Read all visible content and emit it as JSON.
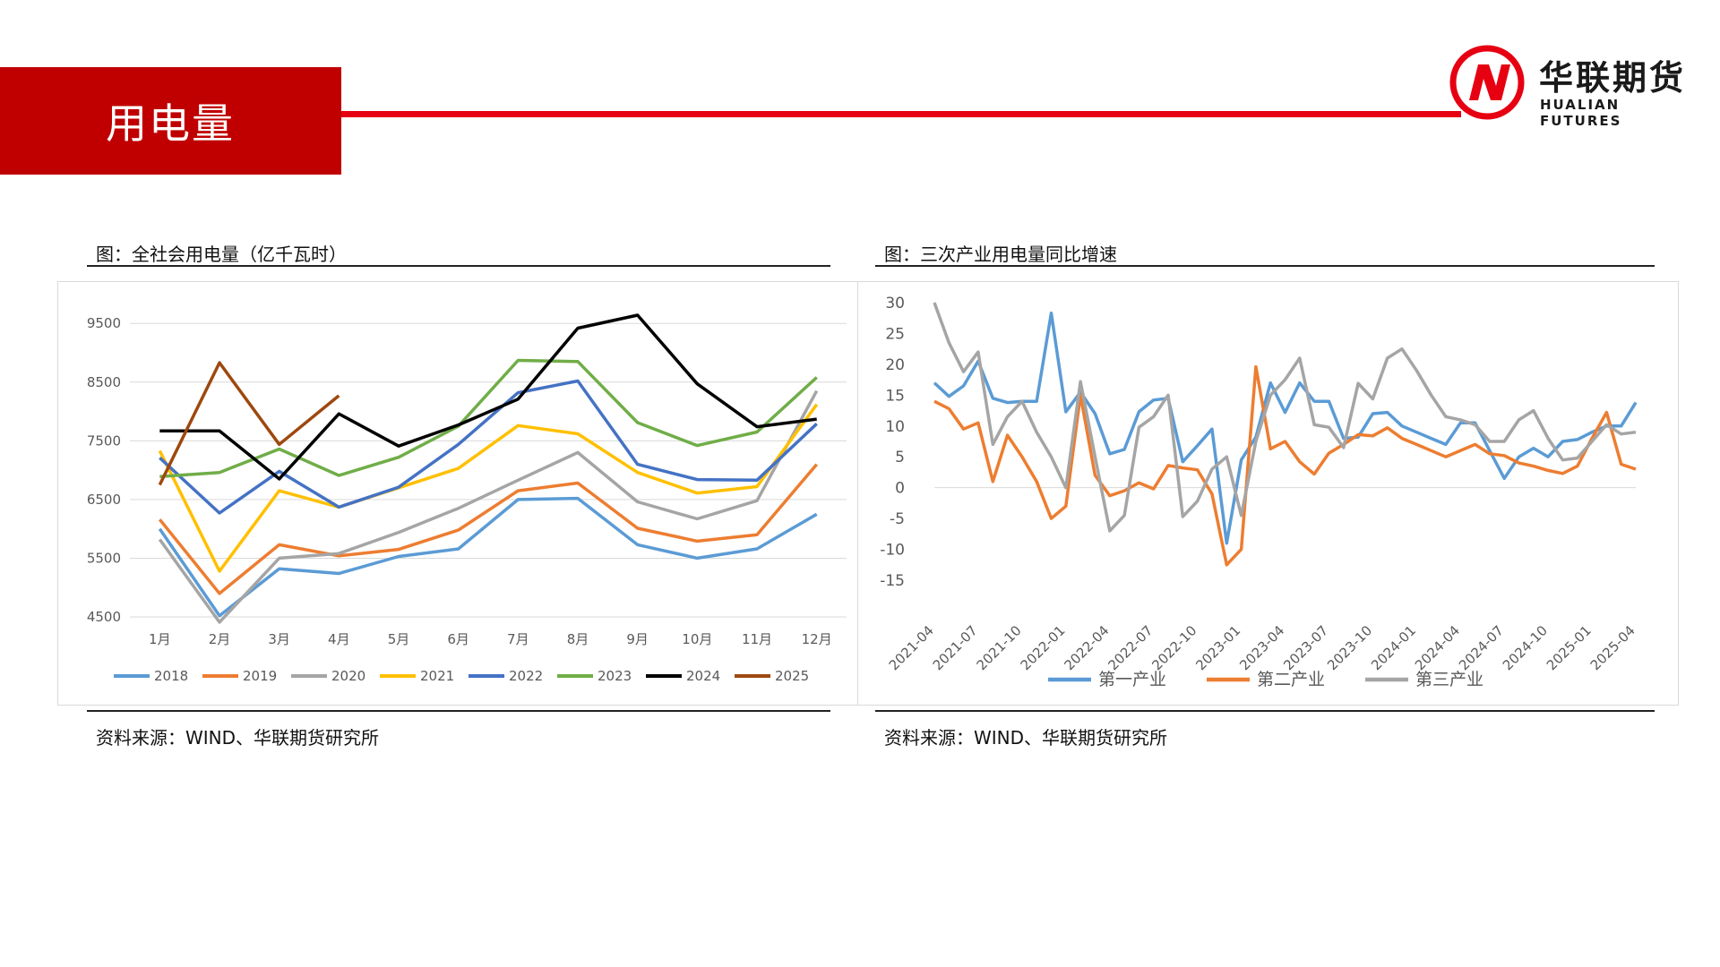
{
  "page": {
    "title": "用电量",
    "logo_cn": "华联期货",
    "logo_en": "HUALIAN FUTURES",
    "colors": {
      "brand_red": "#c00000",
      "rule_red": "#e60012"
    }
  },
  "left": {
    "heading": "图：全社会用电量（亿千瓦时）",
    "source": "资料来源：WIND、华联期货研究所"
  },
  "right": {
    "heading": "图：三次产业用电量同比增速",
    "source": "资料来源：WIND、华联期货研究所"
  },
  "chart_data": [
    {
      "type": "line",
      "title": "图：全社会用电量（亿千瓦时）",
      "categories": [
        "1月",
        "2月",
        "3月",
        "4月",
        "5月",
        "6月",
        "7月",
        "8月",
        "9月",
        "10月",
        "11月",
        "12月"
      ],
      "yticks": [
        4500,
        5500,
        6500,
        7500,
        8500,
        9500
      ],
      "ylim": [
        4500,
        9900
      ],
      "grid": true,
      "legend_position": "bottom",
      "series": [
        {
          "name": "2018",
          "color": "#5b9bd5",
          "values": [
            6000,
            4520,
            5320,
            5240,
            5530,
            5660,
            6500,
            6520,
            5730,
            5500,
            5660,
            6250
          ]
        },
        {
          "name": "2019",
          "color": "#ed7d31",
          "values": [
            6160,
            4900,
            5730,
            5540,
            5650,
            5980,
            6650,
            6780,
            6010,
            5790,
            5900,
            7100
          ]
        },
        {
          "name": "2020",
          "color": "#a5a5a5",
          "values": [
            5820,
            4410,
            5500,
            5580,
            5940,
            6350,
            6830,
            7300,
            6460,
            6170,
            6480,
            8350
          ]
        },
        {
          "name": "2021",
          "color": "#ffc000",
          "values": [
            7330,
            5280,
            6650,
            6370,
            6700,
            7030,
            7760,
            7620,
            6960,
            6610,
            6720,
            8120
          ]
        },
        {
          "name": "2022",
          "color": "#4472c4",
          "values": [
            7210,
            6270,
            6980,
            6370,
            6710,
            7440,
            8320,
            8520,
            7100,
            6840,
            6830,
            7790
          ]
        },
        {
          "name": "2023",
          "color": "#70ad47",
          "values": [
            6890,
            6960,
            7360,
            6910,
            7220,
            7750,
            8870,
            8850,
            7810,
            7420,
            7650,
            8580
          ]
        },
        {
          "name": "2024",
          "color": "#000000",
          "values": [
            7670,
            7670,
            6850,
            7960,
            7410,
            7770,
            8210,
            9420,
            9640,
            8470,
            7740,
            7870
          ]
        },
        {
          "name": "2025",
          "color": "#9e480e",
          "values": [
            6750,
            8830,
            7440,
            8270,
            null,
            null,
            null,
            null,
            null,
            null,
            null,
            null
          ]
        }
      ]
    },
    {
      "type": "line",
      "title": "图：三次产业用电量同比增速",
      "x_tick_labels": [
        "2021-04",
        "2021-07",
        "2021-10",
        "2022-01",
        "2022-04",
        "2022-07",
        "2022-10",
        "2023-01",
        "2023-04",
        "2023-07",
        "2023-10",
        "2024-01",
        "2024-04",
        "2024-07",
        "2024-10",
        "2025-01",
        "2025-04"
      ],
      "x_start": "2021-04",
      "x_end": "2025-04",
      "yticks": [
        -15,
        -10,
        -5,
        0,
        5,
        10,
        15,
        20,
        25,
        30
      ],
      "ylim": [
        -15,
        30
      ],
      "grid": false,
      "legend_position": "bottom",
      "series": [
        {
          "name": "第一产业",
          "color": "#5b9bd5",
          "values": [
            17,
            14.8,
            16.5,
            20.5,
            14.5,
            13.8,
            14,
            14,
            28.3,
            12.3,
            15.5,
            12,
            5.5,
            6.2,
            12.3,
            14.2,
            14.5,
            4.2,
            6.8,
            9.5,
            -9,
            4.5,
            8.2,
            17,
            12.2,
            17,
            14,
            14,
            8,
            8.2,
            12,
            12.2,
            10,
            9,
            8,
            7,
            10.5,
            10.5,
            6,
            1.5,
            5,
            6.4,
            5,
            7.5,
            7.8,
            9,
            10,
            10,
            13.8
          ]
        },
        {
          "name": "第二产业",
          "color": "#ed7d31",
          "values": [
            14,
            12.8,
            9.5,
            10.5,
            1,
            8.5,
            5,
            1,
            -5,
            -3,
            15,
            2,
            -1.3,
            -0.5,
            0.8,
            -0.2,
            3.6,
            3.2,
            2.9,
            -1,
            -12.5,
            -10,
            19.6,
            6.3,
            7.5,
            4.2,
            2.2,
            5.6,
            7,
            8.6,
            8.4,
            9.7,
            8,
            7,
            6,
            5,
            6,
            7,
            5.5,
            5.2,
            4,
            3.5,
            2.8,
            2.3,
            3.5,
            8,
            12.2,
            3.8,
            3
          ]
        },
        {
          "name": "第三产业",
          "color": "#a5a5a5",
          "values": [
            30,
            23.5,
            18.8,
            22,
            7,
            11.5,
            14,
            9,
            5,
            0,
            17.2,
            5,
            -7,
            -4.5,
            9.8,
            11.5,
            15,
            -4.7,
            -2.2,
            3,
            5,
            -4.5,
            7.5,
            15,
            17.5,
            21,
            10.2,
            9.8,
            6.5,
            16.9,
            14.4,
            21,
            22.5,
            19,
            15,
            11.5,
            11,
            10.2,
            7.5,
            7.5,
            11,
            12.5,
            8,
            4.5,
            4.8,
            7.5,
            10.2,
            8.7,
            9
          ]
        }
      ]
    }
  ]
}
